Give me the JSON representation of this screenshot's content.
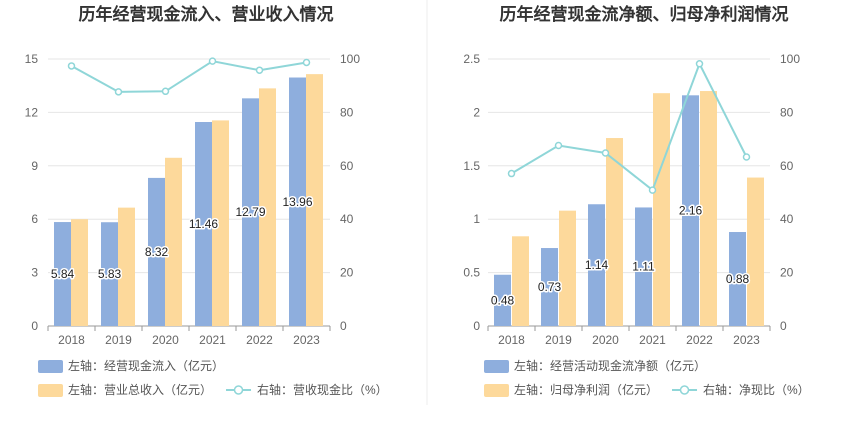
{
  "chart_data": [
    {
      "type": "bar+line",
      "title": "历年经营现金流入、营业收入情况",
      "categories": [
        "2018",
        "2019",
        "2020",
        "2021",
        "2022",
        "2023"
      ],
      "left_axis": {
        "ylim": [
          0,
          15
        ],
        "ticks": [
          "0",
          "3",
          "6",
          "9",
          "12",
          "15"
        ]
      },
      "right_axis": {
        "ylim": [
          0,
          100
        ],
        "ticks": [
          "0",
          "20",
          "40",
          "60",
          "80",
          "100"
        ]
      },
      "series": [
        {
          "name": "左轴：经营现金流入（亿元）",
          "axis": "left",
          "type": "bar",
          "color": "#8eaedd",
          "values": [
            5.84,
            5.83,
            8.32,
            11.46,
            12.79,
            13.96
          ],
          "labels": [
            "5.84",
            "5.83",
            "8.32",
            "11.46",
            "12.79",
            "13.96"
          ]
        },
        {
          "name": "左轴：营业总收入（亿元）",
          "axis": "left",
          "type": "bar",
          "color": "#fdd99b",
          "values": [
            6.0,
            6.65,
            9.45,
            11.55,
            13.35,
            14.15
          ]
        },
        {
          "name": "右轴：营收现金比（%）",
          "axis": "right",
          "type": "line",
          "color": "#8fd6d8",
          "values": [
            97.4,
            87.7,
            87.9,
            99.2,
            95.8,
            98.7
          ]
        }
      ]
    },
    {
      "type": "bar+line",
      "title": "历年经营现金流净额、归母净利润情况",
      "categories": [
        "2018",
        "2019",
        "2020",
        "2021",
        "2022",
        "2023"
      ],
      "left_axis": {
        "ylim": [
          0,
          2.5
        ],
        "ticks": [
          "0",
          "0.5",
          "1",
          "1.5",
          "2",
          "2.5"
        ]
      },
      "right_axis": {
        "ylim": [
          0,
          100
        ],
        "ticks": [
          "0",
          "20",
          "40",
          "60",
          "80",
          "100"
        ]
      },
      "series": [
        {
          "name": "左轴：经营活动现金流净额（亿元）",
          "axis": "left",
          "type": "bar",
          "color": "#8eaedd",
          "values": [
            0.48,
            0.73,
            1.14,
            1.11,
            2.16,
            0.88
          ],
          "labels": [
            "0.48",
            "0.73",
            "1.14",
            "1.11",
            "2.16",
            "0.88"
          ]
        },
        {
          "name": "左轴：归母净利润（亿元）",
          "axis": "left",
          "type": "bar",
          "color": "#fdd99b",
          "values": [
            0.84,
            1.08,
            1.76,
            2.18,
            2.2,
            1.39
          ]
        },
        {
          "name": "右轴：净现比（%）",
          "axis": "right",
          "type": "line",
          "color": "#8fd6d8",
          "values": [
            57.1,
            67.6,
            64.8,
            50.9,
            98.2,
            63.3
          ]
        }
      ]
    }
  ]
}
